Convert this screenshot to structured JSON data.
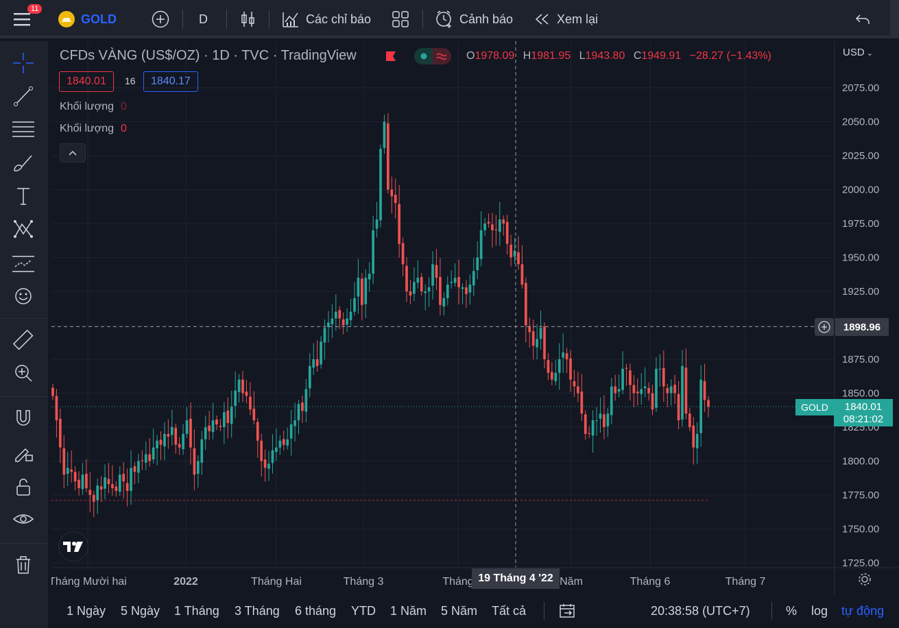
{
  "topbar": {
    "notification_count": "11",
    "symbol": "GOLD",
    "interval": "D",
    "indicators_label": "Các chỉ báo",
    "alerts_label": "Cảnh báo",
    "replay_label": "Xem lại"
  },
  "legend": {
    "title": "CFDs VÀNG (US$/OZ) · 1D · TVC · TradingView",
    "ohlc": {
      "o_label": "O",
      "o": "1978.09",
      "h_label": "H",
      "h": "1981.95",
      "l_label": "L",
      "l": "1943.80",
      "c_label": "C",
      "c": "1949.91",
      "change": "−28.27 (−1.43%)"
    },
    "bid": "1840.01",
    "spread": "16",
    "ask": "1840.17",
    "volume_rows": [
      {
        "label": "Khối lượng",
        "value": "0"
      },
      {
        "label": "Khối lượng",
        "value": "0"
      }
    ]
  },
  "price_axis": {
    "currency": "USD",
    "ticks": [
      "2075.00",
      "2050.00",
      "2025.00",
      "2000.00",
      "1975.00",
      "1950.00",
      "1925.00",
      "1900.00",
      "1875.00",
      "1850.00",
      "1825.00",
      "1800.00",
      "1775.00",
      "1750.00",
      "1725.00"
    ],
    "crosshair_price": "1898.96",
    "last_label": "GOLD",
    "last_price": "1840.01",
    "countdown": "08:21:02"
  },
  "time_axis": {
    "labels": [
      "Tháng Mười hai",
      "2022",
      "Tháng Hai",
      "Tháng 3",
      "Tháng",
      "Năm",
      "Tháng 6",
      "Tháng 7"
    ],
    "crosshair_date": "19 Tháng 4 '22"
  },
  "bottom_bar": {
    "ranges": [
      "1 Ngày",
      "5 Ngày",
      "1 Tháng",
      "3 Tháng",
      "6 tháng",
      "YTD",
      "1 Năm",
      "5 Năm",
      "Tất cả"
    ],
    "clock": "20:38:58 (UTC+7)",
    "percent": "%",
    "log": "log",
    "auto": "tự động"
  },
  "colors": {
    "up": "#26a69a",
    "down": "#ef5350",
    "background": "#131722",
    "panel": "#1e222d",
    "accent": "#2962ff"
  },
  "chart_data": {
    "type": "candlestick",
    "title": "CFDs VÀNG (US$/OZ) · 1D · TVC · TradingView",
    "ylim": [
      1725,
      2075
    ],
    "closes": [
      1848,
      1830,
      1810,
      1790,
      1795,
      1792,
      1785,
      1780,
      1790,
      1780,
      1775,
      1770,
      1782,
      1779,
      1788,
      1783,
      1780,
      1778,
      1790,
      1785,
      1778,
      1795,
      1792,
      1800,
      1800,
      1805,
      1800,
      1810,
      1815,
      1812,
      1820,
      1818,
      1825,
      1812,
      1810,
      1820,
      1830,
      1810,
      1790,
      1800,
      1816,
      1825,
      1822,
      1830,
      1827,
      1825,
      1836,
      1828,
      1840,
      1852,
      1860,
      1850,
      1848,
      1838,
      1830,
      1815,
      1800,
      1795,
      1798,
      1808,
      1810,
      1815,
      1812,
      1816,
      1827,
      1830,
      1842,
      1837,
      1853,
      1870,
      1875,
      1870,
      1888,
      1898,
      1902,
      1905,
      1910,
      1905,
      1900,
      1905,
      1910,
      1920,
      1935,
      1915,
      1935,
      1938,
      1970,
      1978,
      2030,
      2050,
      2000,
      1995,
      1990,
      1960,
      1945,
      1925,
      1922,
      1932,
      1935,
      1925,
      1925,
      1928,
      1945,
      1935,
      1915,
      1920,
      1930,
      1932,
      1935,
      1928,
      1928,
      1923,
      1930,
      1940,
      1950,
      1970,
      1975,
      1975,
      1970,
      1970,
      1978,
      1975,
      1960,
      1950,
      1955,
      1945,
      1930,
      1900,
      1895,
      1885,
      1890,
      1898,
      1875,
      1865,
      1860,
      1865,
      1875,
      1880,
      1875,
      1860,
      1855,
      1850,
      1835,
      1820,
      1820,
      1830,
      1830,
      1835,
      1825,
      1835,
      1855,
      1850,
      1853,
      1868,
      1868,
      1856,
      1850,
      1850,
      1853,
      1855,
      1850,
      1838,
      1868,
      1868,
      1855,
      1850,
      1855,
      1850,
      1830,
      1870,
      1835,
      1825,
      1810,
      1820,
      1860,
      1845,
      1840
    ]
  }
}
